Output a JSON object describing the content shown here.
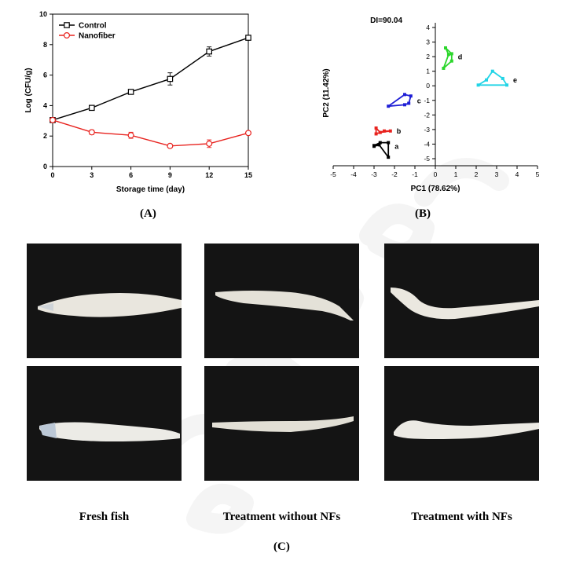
{
  "chart_data": [
    {
      "type": "line",
      "panel_label": "(A)",
      "xlabel": "Storage time (day)",
      "ylabel": "Log (CFU/g)",
      "x": [
        0,
        3,
        6,
        9,
        12,
        15
      ],
      "xlim": [
        0,
        15
      ],
      "ylim": [
        0,
        10
      ],
      "x_ticks": [
        "0",
        "3",
        "6",
        "9",
        "12",
        "15"
      ],
      "y_ticks": [
        "0",
        "2",
        "4",
        "6",
        "8",
        "10"
      ],
      "grid": false,
      "legend": "top-left",
      "series": [
        {
          "name": "Control",
          "color": "#000000",
          "marker": "square",
          "values": [
            3.05,
            3.85,
            4.9,
            5.75,
            7.55,
            8.45
          ],
          "errors": [
            0.1,
            0.15,
            0.15,
            0.4,
            0.3,
            0.15
          ]
        },
        {
          "name": "Nanofiber",
          "color": "#e8231f",
          "marker": "circle",
          "values": [
            3.05,
            2.25,
            2.05,
            1.35,
            1.5,
            2.2
          ],
          "errors": [
            0.1,
            0.15,
            0.2,
            0.1,
            0.25,
            0.1
          ]
        }
      ]
    },
    {
      "type": "scatter",
      "panel_label": "(B)",
      "xlabel": "PC1 (78.62%)",
      "ylabel": "PC2 (11.42%)",
      "annotation": "DI=90.04",
      "xlim": [
        -5,
        5
      ],
      "ylim": [
        -5,
        4
      ],
      "x_ticks": [
        "-5",
        "-4",
        "-3",
        "-2",
        "-1",
        "0",
        "1",
        "2",
        "3",
        "4",
        "5"
      ],
      "y_ticks": [
        "-5",
        "-4",
        "-3",
        "-2",
        "-1",
        "0",
        "1",
        "2",
        "3",
        "4"
      ],
      "grid": false,
      "groups": [
        {
          "label": "a",
          "color": "#000000",
          "points": [
            [
              -3.0,
              -4.1
            ],
            [
              -2.7,
              -3.9
            ],
            [
              -2.3,
              -3.9
            ],
            [
              -2.3,
              -4.9
            ],
            [
              -2.75,
              -4.05
            ],
            [
              -3.0,
              -4.15
            ]
          ]
        },
        {
          "label": "b",
          "color": "#e8231f",
          "points": [
            [
              -2.9,
              -2.9
            ],
            [
              -2.9,
              -3.3
            ],
            [
              -2.5,
              -3.1
            ],
            [
              -2.2,
              -3.1
            ],
            [
              -2.7,
              -3.2
            ]
          ]
        },
        {
          "label": "c",
          "color": "#1f1fd6",
          "points": [
            [
              -2.3,
              -1.4
            ],
            [
              -1.5,
              -0.6
            ],
            [
              -1.2,
              -0.7
            ],
            [
              -1.3,
              -1.2
            ],
            [
              -1.5,
              -1.3
            ]
          ]
        },
        {
          "label": "d",
          "color": "#2bd62b",
          "points": [
            [
              0.5,
              2.6
            ],
            [
              0.8,
              2.2
            ],
            [
              0.8,
              1.7
            ],
            [
              0.4,
              1.2
            ],
            [
              0.65,
              2.15
            ]
          ]
        },
        {
          "label": "e",
          "color": "#22d4e6",
          "points": [
            [
              2.8,
              1.0
            ],
            [
              3.3,
              0.5
            ],
            [
              3.5,
              0.05
            ],
            [
              2.1,
              0.05
            ],
            [
              2.5,
              0.4
            ]
          ]
        }
      ]
    }
  ],
  "panel_c_label": "(C)",
  "photo_captions": [
    "Fresh fish",
    "Treatment without NFs",
    "Treatment with NFs"
  ],
  "watermark_color": "#e9e9e9"
}
